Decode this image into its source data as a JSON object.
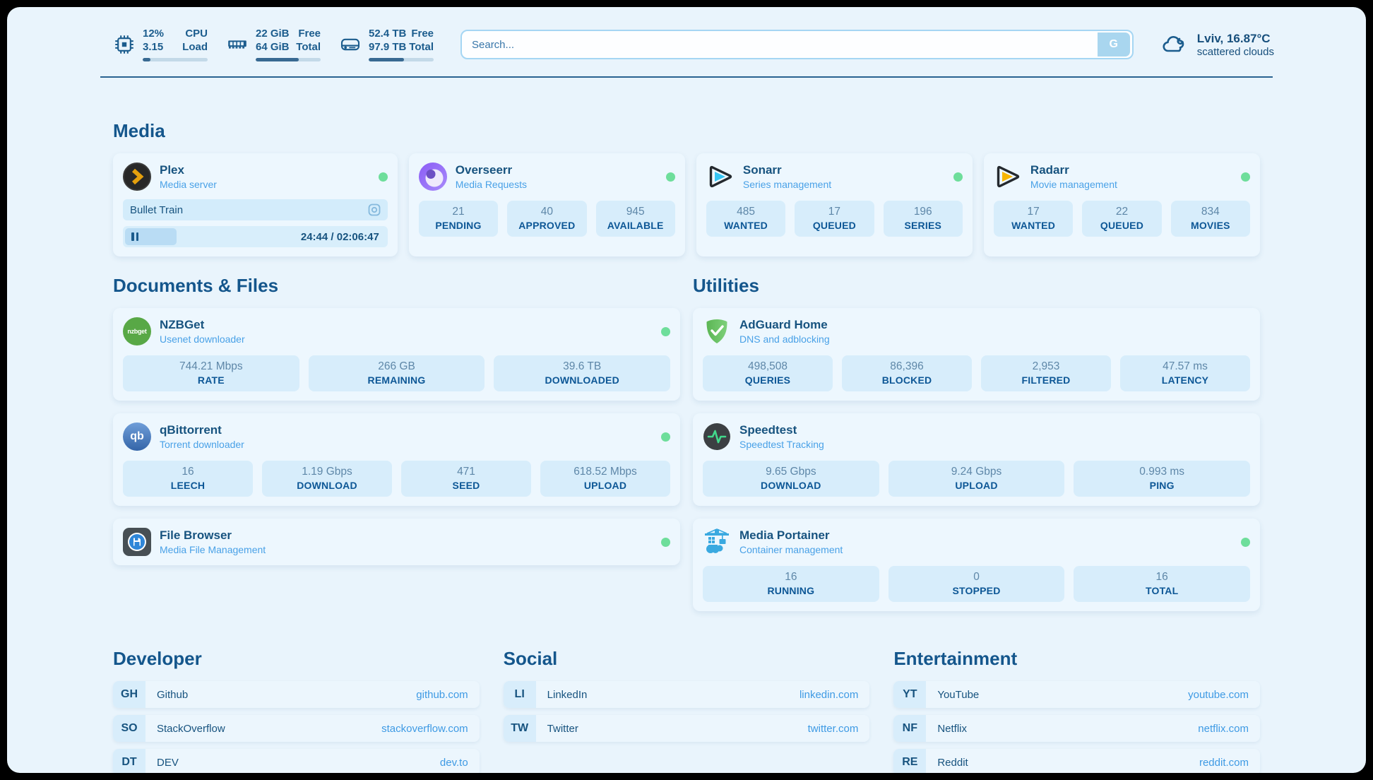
{
  "colors": {
    "page_bg": "#e9f4fc",
    "card_bg": "#edf7fe",
    "stat_bg": "#d7edfb",
    "accent_dark_blue": "#17537f",
    "subtitle_blue": "#49a1e7",
    "link_blue": "#3e9ae4",
    "status_green": "#6ede9b"
  },
  "header": {
    "metrics": [
      {
        "icon": "cpu-icon",
        "line1_left": "12%",
        "line2_left": "3.15",
        "line1_right": "CPU",
        "line2_right": "Load",
        "progress_pct": 12
      },
      {
        "icon": "memory-icon",
        "line1_left": "22 GiB",
        "line2_left": "64 GiB",
        "line1_right": "Free",
        "line2_right": "Total",
        "progress_pct": 66
      },
      {
        "icon": "disk-icon",
        "line1_left": "52.4 TB",
        "line2_left": "97.9 TB",
        "line1_right": "Free",
        "line2_right": "Total",
        "progress_pct": 54
      }
    ],
    "search": {
      "placeholder": "Search...",
      "engine_button": "G"
    },
    "weather": {
      "location_temp": "Lviv, 16.87°C",
      "condition": "scattered clouds"
    }
  },
  "media": {
    "title": "Media",
    "apps": {
      "plex": {
        "name": "Plex",
        "subtitle": "Media server",
        "status": "online",
        "now_playing": "Bullet Train",
        "time": "24:44 / 02:06:47",
        "progress_pct": 19.5
      },
      "overseerr": {
        "name": "Overseerr",
        "subtitle": "Media Requests",
        "status": "online",
        "stats": [
          {
            "value": "21",
            "label": "PENDING"
          },
          {
            "value": "40",
            "label": "APPROVED"
          },
          {
            "value": "945",
            "label": "AVAILABLE"
          }
        ]
      },
      "sonarr": {
        "name": "Sonarr",
        "subtitle": "Series management",
        "status": "online",
        "stats": [
          {
            "value": "485",
            "label": "WANTED"
          },
          {
            "value": "17",
            "label": "QUEUED"
          },
          {
            "value": "196",
            "label": "SERIES"
          }
        ]
      },
      "radarr": {
        "name": "Radarr",
        "subtitle": "Movie management",
        "status": "online",
        "stats": [
          {
            "value": "17",
            "label": "WANTED"
          },
          {
            "value": "22",
            "label": "QUEUED"
          },
          {
            "value": "834",
            "label": "MOVIES"
          }
        ]
      }
    }
  },
  "documents": {
    "title": "Documents & Files",
    "apps": {
      "nzbget": {
        "name": "NZBGet",
        "subtitle": "Usenet downloader",
        "status": "online",
        "icon_label": "nzbget",
        "stats": [
          {
            "value": "744.21 Mbps",
            "label": "RATE"
          },
          {
            "value": "266 GB",
            "label": "REMAINING"
          },
          {
            "value": "39.6 TB",
            "label": "DOWNLOADED"
          }
        ]
      },
      "qbittorrent": {
        "name": "qBittorrent",
        "subtitle": "Torrent downloader",
        "status": "online",
        "icon_label": "qb",
        "stats": [
          {
            "value": "16",
            "label": "LEECH"
          },
          {
            "value": "1.19 Gbps",
            "label": "DOWNLOAD"
          },
          {
            "value": "471",
            "label": "SEED"
          },
          {
            "value": "618.52 Mbps",
            "label": "UPLOAD"
          }
        ]
      },
      "filebrowser": {
        "name": "File Browser",
        "subtitle": "Media File Management",
        "status": "online"
      }
    }
  },
  "utilities": {
    "title": "Utilities",
    "apps": {
      "adguard": {
        "name": "AdGuard Home",
        "subtitle": "DNS and adblocking",
        "stats": [
          {
            "value": "498,508",
            "label": "QUERIES"
          },
          {
            "value": "86,396",
            "label": "BLOCKED"
          },
          {
            "value": "2,953",
            "label": "FILTERED"
          },
          {
            "value": "47.57 ms",
            "label": "LATENCY"
          }
        ]
      },
      "speedtest": {
        "name": "Speedtest",
        "subtitle": "Speedtest Tracking",
        "stats": [
          {
            "value": "9.65 Gbps",
            "label": "DOWNLOAD"
          },
          {
            "value": "9.24 Gbps",
            "label": "UPLOAD"
          },
          {
            "value": "0.993 ms",
            "label": "PING"
          }
        ]
      },
      "portainer": {
        "name": "Media Portainer",
        "subtitle": "Container management",
        "status": "online",
        "stats": [
          {
            "value": "16",
            "label": "RUNNING"
          },
          {
            "value": "0",
            "label": "STOPPED"
          },
          {
            "value": "16",
            "label": "TOTAL"
          }
        ]
      }
    }
  },
  "bookmarks": {
    "developer": {
      "title": "Developer",
      "links": [
        {
          "abbr": "GH",
          "name": "Github",
          "url": "github.com"
        },
        {
          "abbr": "SO",
          "name": "StackOverflow",
          "url": "stackoverflow.com"
        },
        {
          "abbr": "DT",
          "name": "DEV",
          "url": "dev.to"
        }
      ]
    },
    "social": {
      "title": "Social",
      "links": [
        {
          "abbr": "LI",
          "name": "LinkedIn",
          "url": "linkedin.com"
        },
        {
          "abbr": "TW",
          "name": "Twitter",
          "url": "twitter.com"
        }
      ]
    },
    "entertainment": {
      "title": "Entertainment",
      "links": [
        {
          "abbr": "YT",
          "name": "YouTube",
          "url": "youtube.com"
        },
        {
          "abbr": "NF",
          "name": "Netflix",
          "url": "netflix.com"
        },
        {
          "abbr": "RE",
          "name": "Reddit",
          "url": "reddit.com"
        }
      ]
    }
  }
}
